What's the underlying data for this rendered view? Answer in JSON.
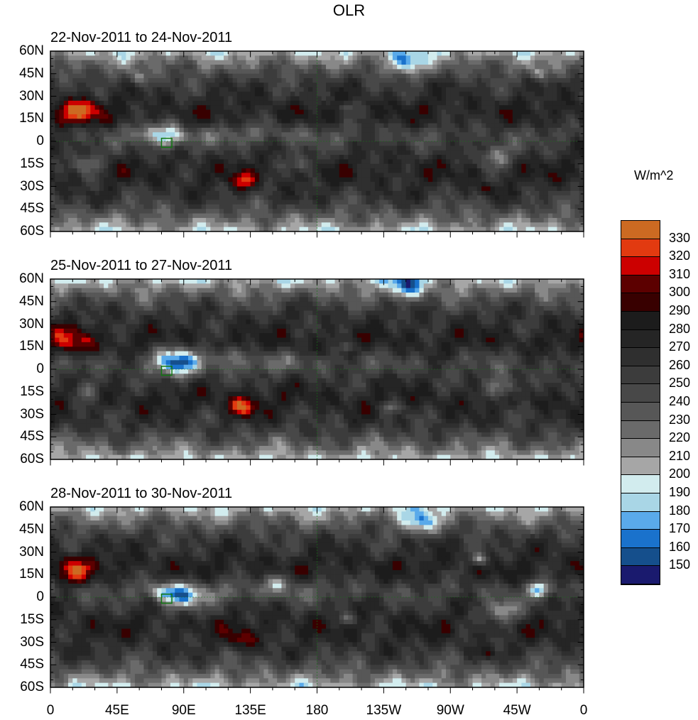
{
  "title": "OLR",
  "units": "W/m^2",
  "panels": [
    {
      "title": "22-Nov-2011 to 24-Nov-2011",
      "features": [
        [
          15,
          18,
          45,
          10
        ],
        [
          25,
          22,
          35,
          6
        ],
        [
          130,
          -27,
          45,
          6
        ],
        [
          295,
          -32,
          35,
          4
        ],
        [
          80,
          3,
          -60,
          8
        ],
        [
          65,
          5,
          -40,
          6
        ],
        [
          25,
          -15,
          -45,
          7
        ],
        [
          60,
          42,
          -40,
          5
        ],
        [
          170,
          -15,
          -40,
          6
        ],
        [
          300,
          -10,
          -50,
          8
        ],
        [
          240,
          52,
          -60,
          8
        ],
        [
          200,
          23,
          -35,
          3
        ],
        [
          330,
          45,
          -40,
          4
        ]
      ]
    },
    {
      "title": "25-Nov-2011 to 27-Nov-2011",
      "features": [
        [
          15,
          18,
          45,
          10
        ],
        [
          130,
          -25,
          55,
          7
        ],
        [
          85,
          5,
          -85,
          10
        ],
        [
          305,
          -12,
          -55,
          8
        ],
        [
          25,
          -15,
          -45,
          7
        ],
        [
          230,
          -25,
          -40,
          4
        ],
        [
          200,
          15,
          -35,
          3
        ],
        [
          240,
          55,
          -60,
          8
        ],
        [
          120,
          10,
          -35,
          6
        ]
      ]
    },
    {
      "title": "28-Nov-2011 to 30-Nov-2011",
      "features": [
        [
          15,
          18,
          45,
          10
        ],
        [
          130,
          -28,
          45,
          6
        ],
        [
          90,
          0,
          -75,
          9
        ],
        [
          75,
          3,
          -55,
          6
        ],
        [
          330,
          5,
          -75,
          5
        ],
        [
          290,
          25,
          -65,
          4
        ],
        [
          305,
          -10,
          -60,
          8
        ],
        [
          155,
          10,
          -45,
          6
        ],
        [
          250,
          50,
          -55,
          8
        ],
        [
          200,
          -15,
          -40,
          4
        ],
        [
          295,
          -38,
          30,
          3
        ]
      ]
    }
  ],
  "y_ticks": [
    "60N",
    "45N",
    "30N",
    "15N",
    "0",
    "15S",
    "30S",
    "45S",
    "60S"
  ],
  "x_ticks": [
    "0",
    "45E",
    "90E",
    "135E",
    "180",
    "135W",
    "90W",
    "45W",
    "0"
  ],
  "colorbar": {
    "labels": [
      "330",
      "320",
      "310",
      "300",
      "290",
      "280",
      "270",
      "260",
      "250",
      "240",
      "230",
      "220",
      "210",
      "200",
      "190",
      "180",
      "170",
      "160",
      "150"
    ],
    "colors": [
      "#cc6a22",
      "#e23a10",
      "#cc0000",
      "#5c0000",
      "#380000",
      "#1c1c1c",
      "#252525",
      "#2f2f2f",
      "#3c3c3c",
      "#484848",
      "#575757",
      "#6a6a6a",
      "#888888",
      "#a6a6a6",
      "#d2ecee",
      "#a9d6e6",
      "#5aaaea",
      "#1a72cc",
      "#154f8c",
      "#1a1a6e"
    ]
  },
  "coast_color": "#127812",
  "chart_data": {
    "type": "heatmap",
    "variable": "OLR",
    "levels": [
      150,
      160,
      170,
      180,
      190,
      200,
      210,
      220,
      230,
      240,
      250,
      260,
      270,
      280,
      290,
      300,
      310,
      320,
      330
    ],
    "lon_range": [
      0,
      360
    ],
    "lat_range": [
      -60,
      60
    ]
  }
}
